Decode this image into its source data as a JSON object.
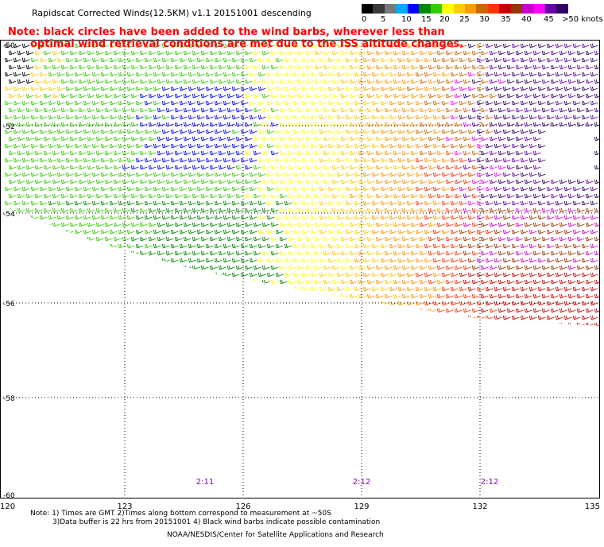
{
  "title": "Rapidscat Corrected Winds(12.5KM) v1.1 20151001 descending",
  "note_line1": "Note: black circles have been added to the wind barbs, wherever less than",
  "note_line2": "optimal wind retrieval conditions are met due to the ISS altitude changes.",
  "legend": {
    "labels": [
      "0",
      "5",
      "10",
      "15",
      "20",
      "25",
      "30",
      "35",
      "40",
      "45",
      ">50 knots"
    ],
    "colors": [
      "#000000",
      "#3a3a3a",
      "#787878",
      "#00aaff",
      "#0000ff",
      "#008800",
      "#33cc00",
      "#ffff00",
      "#ffcc00",
      "#ff9900",
      "#cc6600",
      "#ff3300",
      "#cc0000",
      "#993300",
      "#cc00cc",
      "#ff00ff",
      "#6600aa",
      "#330066"
    ]
  },
  "axes": {
    "lon_labels": [
      "120",
      "123",
      "126",
      "129",
      "132",
      "135"
    ],
    "lat_labels": [
      "-50",
      "-52",
      "-54",
      "-56",
      "-58",
      "-60"
    ]
  },
  "time_labels": [
    "2:11",
    "2:12",
    "2:12"
  ],
  "footer": {
    "line1": "Note: 1) Times are GMT 2)Times along bottom correspond to measurement at ~50S",
    "line2": "3)Data buffer is 22 hrs from 20151001 4) Black wind barbs indicate possible contamination",
    "credit": "NOAA/NESDIS/Center for Satellite Applications and Research"
  }
}
